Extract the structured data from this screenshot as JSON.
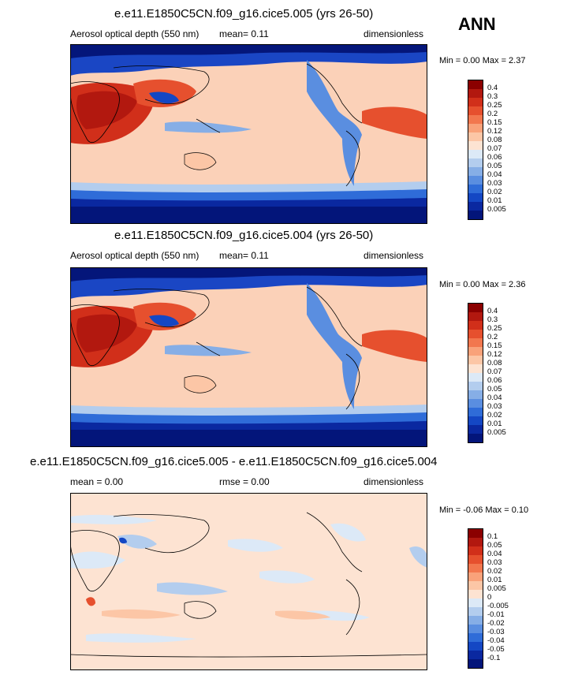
{
  "season": "ANN",
  "panels": [
    {
      "title": "e.e11.E1850C5CN.f09_g16.cice5.005 (yrs 26-50)",
      "variable": "Aerosol optical depth (550 nm)",
      "mean": "mean=  0.11",
      "units": "dimensionless",
      "minmax": "Min =  0.00 Max =  2.37",
      "colorbar_labels": [
        "0.4",
        "0.3",
        "0.25",
        "0.2",
        "0.15",
        "0.12",
        "0.08",
        "0.07",
        "0.06",
        "0.05",
        "0.04",
        "0.03",
        "0.02",
        "0.01",
        "0.005"
      ],
      "colorbar_colors": [
        "#8b0000",
        "#b2180f",
        "#d12f1a",
        "#e6502e",
        "#f2774e",
        "#f9a27a",
        "#fcc6a6",
        "#fde3d2",
        "#dce9f7",
        "#b3cdee",
        "#86aee6",
        "#5a8ee0",
        "#2f6cd8",
        "#1447c4",
        "#0a28a0",
        "#03157a"
      ]
    },
    {
      "title": "e.e11.E1850C5CN.f09_g16.cice5.004 (yrs 26-50)",
      "variable": "Aerosol optical depth (550 nm)",
      "mean": "mean=  0.11",
      "units": "dimensionless",
      "minmax": "Min =  0.00 Max =  2.36",
      "colorbar_labels": [
        "0.4",
        "0.3",
        "0.25",
        "0.2",
        "0.15",
        "0.12",
        "0.08",
        "0.07",
        "0.06",
        "0.05",
        "0.04",
        "0.03",
        "0.02",
        "0.01",
        "0.005"
      ],
      "colorbar_colors": [
        "#8b0000",
        "#b2180f",
        "#d12f1a",
        "#e6502e",
        "#f2774e",
        "#f9a27a",
        "#fcc6a6",
        "#fde3d2",
        "#dce9f7",
        "#b3cdee",
        "#86aee6",
        "#5a8ee0",
        "#2f6cd8",
        "#1447c4",
        "#0a28a0",
        "#03157a"
      ]
    },
    {
      "title": "e.e11.E1850C5CN.f09_g16.cice5.005 - e.e11.E1850C5CN.f09_g16.cice5.004",
      "mean": "mean =  0.00",
      "rmse": "rmse =  0.00",
      "units": "dimensionless",
      "minmax": "Min = -0.06 Max =  0.10",
      "colorbar_labels": [
        "0.1",
        "0.05",
        "0.04",
        "0.03",
        "0.02",
        "0.01",
        "0.005",
        "0",
        "-0.005",
        "-0.01",
        "-0.02",
        "-0.03",
        "-0.04",
        "-0.05",
        "-0.1"
      ],
      "colorbar_colors": [
        "#8b0000",
        "#b2180f",
        "#d12f1a",
        "#e6502e",
        "#f2774e",
        "#f9a27a",
        "#fcc6a6",
        "#fde3d2",
        "#dce9f7",
        "#b3cdee",
        "#86aee6",
        "#5a8ee0",
        "#2f6cd8",
        "#1447c4",
        "#0a28a0",
        "#03157a"
      ]
    }
  ]
}
